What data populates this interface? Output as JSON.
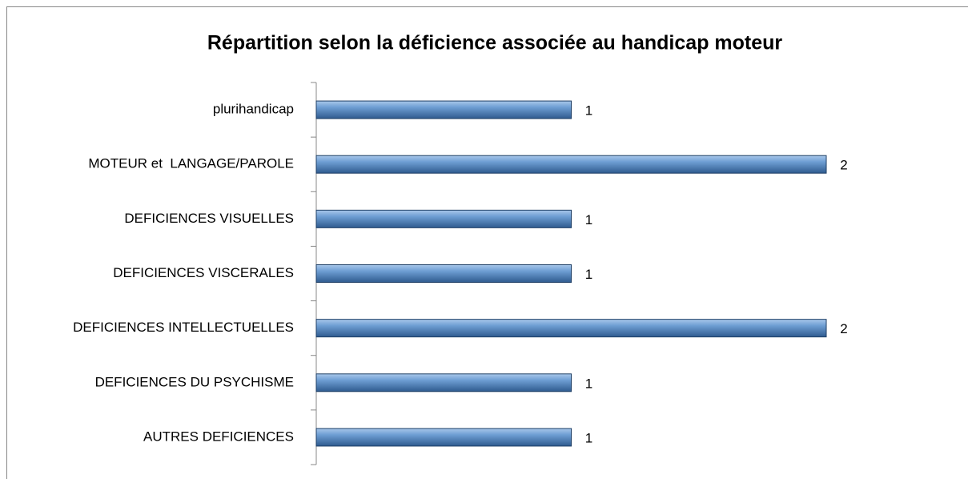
{
  "chart_data": {
    "type": "hbar",
    "title": "Répartition selon la déficience associée au handicap moteur",
    "categories": [
      "plurihandicap",
      "MOTEUR et  LANGAGE/PAROLE",
      "DEFICIENCES VISUELLES",
      "DEFICIENCES VISCERALES",
      "DEFICIENCES INTELLECTUELLES",
      "DEFICIENCES DU PSYCHISME",
      "AUTRES DEFICIENCES"
    ],
    "values": [
      1,
      2,
      1,
      1,
      2,
      1,
      1
    ],
    "color": "#4f81bd"
  }
}
